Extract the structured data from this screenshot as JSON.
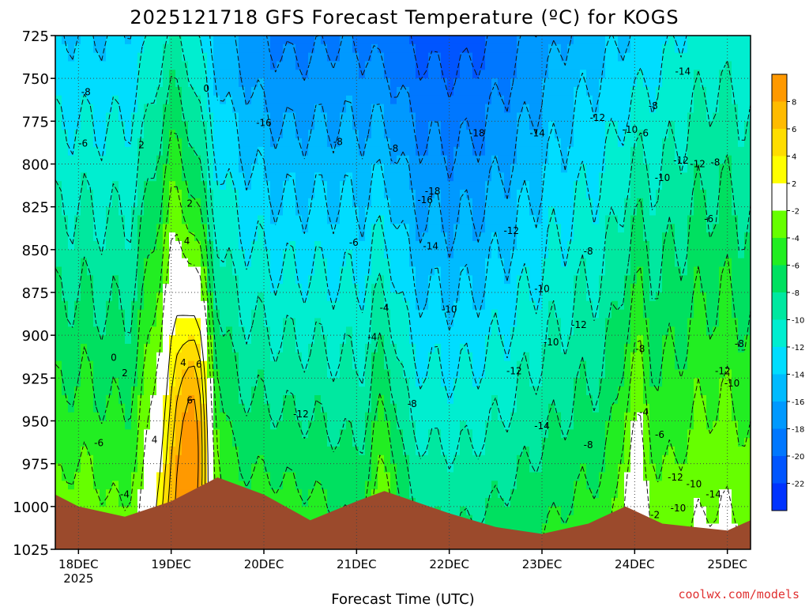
{
  "title": "2025121718 GFS Forecast Temperature (ºC) for KOGS",
  "xlabel": "Forecast Time (UTC)",
  "credit": "coolwx.com/models",
  "chart_data": {
    "type": "heatmap",
    "title": "2025121718 GFS Forecast Temperature (ºC) for KOGS",
    "xlabel": "Forecast Time (UTC)",
    "ylabel": "",
    "y_axis": {
      "ticks": [
        725,
        750,
        775,
        800,
        825,
        850,
        875,
        900,
        925,
        950,
        975,
        1000,
        1025
      ],
      "range": [
        725,
        1025
      ],
      "inverted": true,
      "units": "hPa"
    },
    "x_axis": {
      "ticks": [
        {
          "label": "18DEC",
          "sublabel": "2025",
          "value": 0
        },
        {
          "label": "19DEC",
          "value": 1
        },
        {
          "label": "20DEC",
          "value": 2
        },
        {
          "label": "21DEC",
          "value": 3
        },
        {
          "label": "22DEC",
          "value": 4
        },
        {
          "label": "23DEC",
          "value": 5
        },
        {
          "label": "24DEC",
          "value": 6
        },
        {
          "label": "25DEC",
          "value": 7
        }
      ],
      "range": [
        -0.25,
        7.25
      ],
      "units": "days since 18DEC 00Z"
    },
    "grid": true,
    "colorbar": {
      "labels": [
        8,
        6,
        4,
        2,
        -2,
        -4,
        -6,
        -8,
        -10,
        -12,
        -14,
        -16,
        -18,
        -20,
        -22
      ],
      "bins": [
        {
          "min": 8,
          "max": 10,
          "color": "#ff9900"
        },
        {
          "min": 6,
          "max": 8,
          "color": "#ffbb00"
        },
        {
          "min": 4,
          "max": 6,
          "color": "#ffdd00"
        },
        {
          "min": 2,
          "max": 4,
          "color": "#ffff00"
        },
        {
          "min": -2,
          "max": 2,
          "color": "#ffffff"
        },
        {
          "min": -4,
          "max": -2,
          "color": "#66ff00"
        },
        {
          "min": -6,
          "max": -4,
          "color": "#22ee22"
        },
        {
          "min": -8,
          "max": -6,
          "color": "#00e060"
        },
        {
          "min": -10,
          "max": -8,
          "color": "#00e8a0"
        },
        {
          "min": -12,
          "max": -10,
          "color": "#00eed0"
        },
        {
          "min": -14,
          "max": -12,
          "color": "#00ddff"
        },
        {
          "min": -16,
          "max": -14,
          "color": "#00bbff"
        },
        {
          "min": -18,
          "max": -16,
          "color": "#0099ff"
        },
        {
          "min": -20,
          "max": -18,
          "color": "#0077ff"
        },
        {
          "min": -22,
          "max": -20,
          "color": "#0055ff"
        },
        {
          "min": -24,
          "max": -22,
          "color": "#0033ff"
        }
      ]
    },
    "terrain": {
      "color": "#9b4a2c",
      "surface_pressure": [
        [
          -0.25,
          993
        ],
        [
          0,
          1000
        ],
        [
          0.5,
          1006
        ],
        [
          1,
          997
        ],
        [
          1.5,
          983
        ],
        [
          2,
          993
        ],
        [
          2.5,
          1008
        ],
        [
          3,
          997
        ],
        [
          3.3,
          991
        ],
        [
          4,
          1004
        ],
        [
          4.5,
          1012
        ],
        [
          5,
          1016
        ],
        [
          5.5,
          1010
        ],
        [
          5.9,
          1000
        ],
        [
          6.3,
          1010
        ],
        [
          7,
          1014
        ],
        [
          7.25,
          1008
        ]
      ]
    },
    "contour_labels": [
      {
        "t": 0.08,
        "p": 758,
        "v": "-8"
      },
      {
        "t": 0.05,
        "p": 788,
        "v": "-6"
      },
      {
        "t": 0.22,
        "p": 963,
        "v": "-6"
      },
      {
        "t": 0.5,
        "p": 993,
        "v": "-4"
      },
      {
        "t": 0.38,
        "p": 913,
        "v": "0"
      },
      {
        "t": 0.5,
        "p": 922,
        "v": "2"
      },
      {
        "t": 0.68,
        "p": 789,
        "v": "2"
      },
      {
        "t": 1.38,
        "p": 756,
        "v": "0"
      },
      {
        "t": 1.2,
        "p": 823,
        "v": "2"
      },
      {
        "t": 1.17,
        "p": 845,
        "v": "4"
      },
      {
        "t": 1.13,
        "p": 916,
        "v": "4"
      },
      {
        "t": 1.3,
        "p": 917,
        "v": "6"
      },
      {
        "t": 1.2,
        "p": 938,
        "v": "6"
      },
      {
        "t": 0.82,
        "p": 961,
        "v": "4"
      },
      {
        "t": 2.0,
        "p": 776,
        "v": "-16"
      },
      {
        "t": 2.8,
        "p": 787,
        "v": "-8"
      },
      {
        "t": 3.4,
        "p": 791,
        "v": "-8"
      },
      {
        "t": 2.97,
        "p": 846,
        "v": "-6"
      },
      {
        "t": 3.3,
        "p": 884,
        "v": "-4"
      },
      {
        "t": 3.17,
        "p": 901,
        "v": "-4"
      },
      {
        "t": 2.4,
        "p": 946,
        "v": "-12"
      },
      {
        "t": 3.6,
        "p": 940,
        "v": "-8"
      },
      {
        "t": 4.0,
        "p": 885,
        "v": "-10"
      },
      {
        "t": 3.74,
        "p": 821,
        "v": "-16"
      },
      {
        "t": 3.82,
        "p": 816,
        "v": "-18"
      },
      {
        "t": 3.8,
        "p": 848,
        "v": "-14"
      },
      {
        "t": 4.3,
        "p": 782,
        "v": "-18"
      },
      {
        "t": 4.95,
        "p": 782,
        "v": "-14"
      },
      {
        "t": 4.67,
        "p": 839,
        "v": "-12"
      },
      {
        "t": 5.1,
        "p": 904,
        "v": "-10"
      },
      {
        "t": 5.0,
        "p": 953,
        "v": "-14"
      },
      {
        "t": 4.7,
        "p": 921,
        "v": "-12"
      },
      {
        "t": 5.5,
        "p": 964,
        "v": "-8"
      },
      {
        "t": 5.6,
        "p": 773,
        "v": "-12"
      },
      {
        "t": 5.95,
        "p": 780,
        "v": "-10"
      },
      {
        "t": 6.2,
        "p": 766,
        "v": "-8"
      },
      {
        "t": 6.1,
        "p": 782,
        "v": "-6"
      },
      {
        "t": 6.3,
        "p": 808,
        "v": "-10"
      },
      {
        "t": 6.5,
        "p": 798,
        "v": "-12"
      },
      {
        "t": 6.87,
        "p": 799,
        "v": "-8"
      },
      {
        "t": 6.52,
        "p": 746,
        "v": "-14"
      },
      {
        "t": 6.68,
        "p": 800,
        "v": "-12"
      },
      {
        "t": 5.5,
        "p": 851,
        "v": "-8"
      },
      {
        "t": 6.8,
        "p": 832,
        "v": "-6"
      },
      {
        "t": 6.06,
        "p": 908,
        "v": "-8"
      },
      {
        "t": 6.1,
        "p": 945,
        "v": "-4"
      },
      {
        "t": 6.27,
        "p": 958,
        "v": "-6"
      },
      {
        "t": 6.44,
        "p": 983,
        "v": "-12"
      },
      {
        "t": 6.22,
        "p": 1005,
        "v": "-2"
      },
      {
        "t": 6.64,
        "p": 987,
        "v": "-10"
      },
      {
        "t": 6.85,
        "p": 993,
        "v": "-14"
      },
      {
        "t": 6.95,
        "p": 921,
        "v": "-12"
      },
      {
        "t": 7.05,
        "p": 928,
        "v": "-10"
      },
      {
        "t": 7.13,
        "p": 905,
        "v": "-8"
      },
      {
        "t": 6.47,
        "p": 1001,
        "v": "-10"
      },
      {
        "t": 5.4,
        "p": 894,
        "v": "-12"
      },
      {
        "t": 5.0,
        "p": 873,
        "v": "-10"
      }
    ]
  }
}
